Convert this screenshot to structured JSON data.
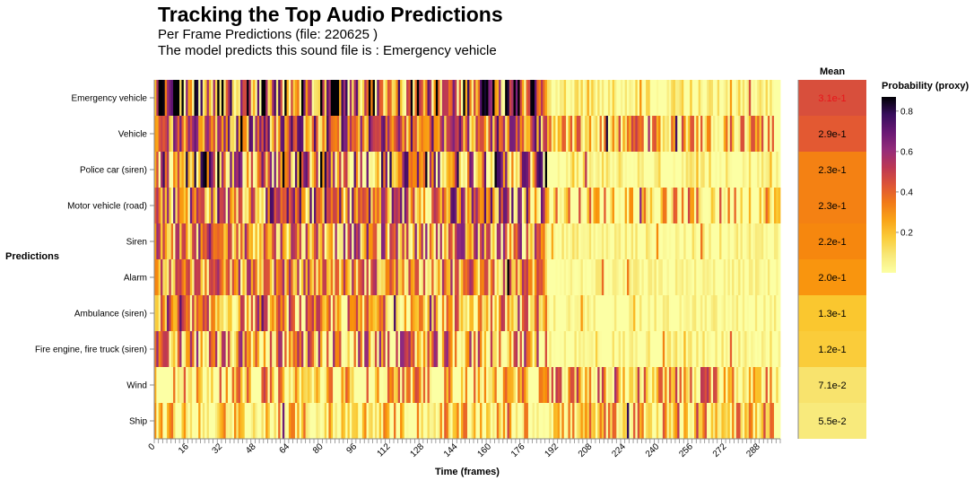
{
  "title": "Tracking the Top Audio Predictions",
  "subtitle_line1": "Per Frame Predictions    (file: 220625 )",
  "subtitle_line2": "The model predicts this sound file is : Emergency vehicle",
  "chart_data": {
    "type": "heatmap",
    "y_title": "Predictions",
    "x_title": "Time (frames)",
    "mean_title": "Mean",
    "legend_title": "Probability (proxy)",
    "legend_ticks": [
      "0.8",
      "0.6",
      "0.4",
      "0.2"
    ],
    "legend_tick_values": [
      0.8,
      0.6,
      0.4,
      0.2
    ],
    "legend_range": [
      0,
      0.87
    ],
    "x_ticks": [
      "0",
      "16",
      "32",
      "48",
      "64",
      "80",
      "96",
      "112",
      "128",
      "144",
      "160",
      "176",
      "192",
      "208",
      "224",
      "240",
      "256",
      "272",
      "288"
    ],
    "x_tick_values": [
      0,
      16,
      32,
      48,
      64,
      80,
      96,
      112,
      128,
      144,
      160,
      176,
      192,
      208,
      224,
      240,
      256,
      272,
      288
    ],
    "num_frames": 298,
    "color_scheme": "inferno (reversed)",
    "highlight_color": "#e8141a",
    "rows": [
      {
        "label": "Emergency vehicle",
        "mean_label": "3.1e-1",
        "mean": 0.31,
        "highlight": true
      },
      {
        "label": "Vehicle",
        "mean_label": "2.9e-1",
        "mean": 0.29
      },
      {
        "label": "Police car (siren)",
        "mean_label": "2.3e-1",
        "mean": 0.23
      },
      {
        "label": "Motor vehicle (road)",
        "mean_label": "2.3e-1",
        "mean": 0.23
      },
      {
        "label": "Siren",
        "mean_label": "2.2e-1",
        "mean": 0.22
      },
      {
        "label": "Alarm",
        "mean_label": "2.0e-1",
        "mean": 0.2
      },
      {
        "label": "Ambulance (siren)",
        "mean_label": "1.3e-1",
        "mean": 0.13
      },
      {
        "label": "Fire engine, fire truck (siren)",
        "mean_label": "1.2e-1",
        "mean": 0.12
      },
      {
        "label": "Wind",
        "mean_label": "7.1e-2",
        "mean": 0.071
      },
      {
        "label": "Ship",
        "mean_label": "5.5e-2",
        "mean": 0.055
      }
    ]
  }
}
